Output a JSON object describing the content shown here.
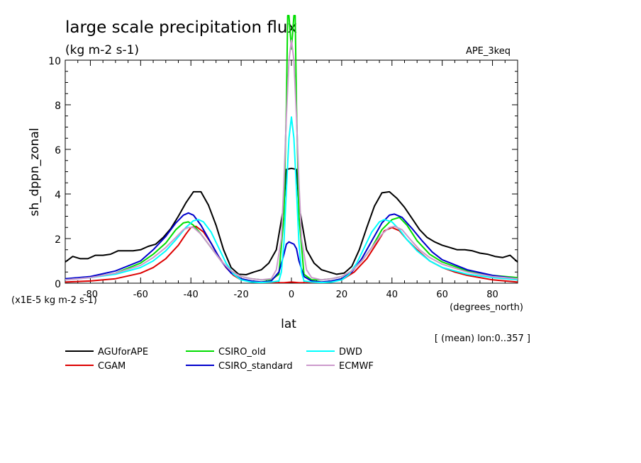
{
  "chart_data": {
    "type": "line",
    "title": "large scale precipitation flux",
    "subtitle": "(kg m-2 s-1)",
    "experiment": "APE_3keq",
    "ylabel": "sh_dppn_zonal",
    "xlabel": "lat",
    "x_unit": "(degrees_north)",
    "y_scale_note": "(x1E-5 kg m-2 s-1)",
    "footnote": "[ (mean) lon:0..357 ]",
    "xlim": [
      -90,
      90
    ],
    "ylim": [
      0,
      10
    ],
    "x_ticks": [
      -80,
      -60,
      -40,
      -20,
      0,
      20,
      40,
      60,
      80
    ],
    "x_tick_labels": [
      "-80",
      "-60",
      "-40",
      "-20",
      "0",
      "20",
      "40",
      "60",
      "80"
    ],
    "y_ticks": [
      0,
      2,
      4,
      6,
      8,
      10
    ],
    "y_tick_labels": [
      "0",
      "2",
      "4",
      "6",
      "8",
      "10"
    ],
    "legend_position": "bottom",
    "series": [
      {
        "name": "AGUforAPE",
        "color": "#000000",
        "points": [
          [
            -90,
            0.95
          ],
          [
            -87,
            1.2
          ],
          [
            -84,
            1.1
          ],
          [
            -81,
            1.1
          ],
          [
            -78,
            1.25
          ],
          [
            -75,
            1.25
          ],
          [
            -72,
            1.3
          ],
          [
            -69,
            1.45
          ],
          [
            -66,
            1.45
          ],
          [
            -63,
            1.45
          ],
          [
            -60,
            1.5
          ],
          [
            -57,
            1.65
          ],
          [
            -54,
            1.75
          ],
          [
            -51,
            2.05
          ],
          [
            -48,
            2.45
          ],
          [
            -45,
            3.0
          ],
          [
            -42,
            3.6
          ],
          [
            -39,
            4.1
          ],
          [
            -36,
            4.1
          ],
          [
            -33,
            3.5
          ],
          [
            -30,
            2.6
          ],
          [
            -27,
            1.5
          ],
          [
            -24,
            0.7
          ],
          [
            -21,
            0.4
          ],
          [
            -18,
            0.38
          ],
          [
            -15,
            0.5
          ],
          [
            -12,
            0.6
          ],
          [
            -9,
            0.9
          ],
          [
            -6,
            1.5
          ],
          [
            -3,
            3.5
          ],
          [
            -2,
            5.1
          ],
          [
            0,
            5.15
          ],
          [
            2,
            5.1
          ],
          [
            3,
            3.5
          ],
          [
            6,
            1.5
          ],
          [
            9,
            0.9
          ],
          [
            12,
            0.6
          ],
          [
            15,
            0.5
          ],
          [
            18,
            0.4
          ],
          [
            21,
            0.45
          ],
          [
            24,
            0.75
          ],
          [
            27,
            1.5
          ],
          [
            30,
            2.5
          ],
          [
            33,
            3.45
          ],
          [
            36,
            4.05
          ],
          [
            39,
            4.1
          ],
          [
            42,
            3.8
          ],
          [
            45,
            3.4
          ],
          [
            48,
            2.9
          ],
          [
            51,
            2.4
          ],
          [
            54,
            2.05
          ],
          [
            57,
            1.85
          ],
          [
            60,
            1.7
          ],
          [
            63,
            1.6
          ],
          [
            66,
            1.5
          ],
          [
            69,
            1.5
          ],
          [
            72,
            1.45
          ],
          [
            75,
            1.35
          ],
          [
            78,
            1.3
          ],
          [
            81,
            1.2
          ],
          [
            84,
            1.15
          ],
          [
            87,
            1.25
          ],
          [
            90,
            0.95
          ]
        ]
      },
      {
        "name": "CGAM",
        "color": "#dd0000",
        "points": [
          [
            -90,
            0.05
          ],
          [
            -80,
            0.1
          ],
          [
            -70,
            0.2
          ],
          [
            -60,
            0.45
          ],
          [
            -55,
            0.7
          ],
          [
            -50,
            1.1
          ],
          [
            -45,
            1.7
          ],
          [
            -42,
            2.2
          ],
          [
            -40,
            2.5
          ],
          [
            -38,
            2.55
          ],
          [
            -35,
            2.3
          ],
          [
            -32,
            1.8
          ],
          [
            -29,
            1.2
          ],
          [
            -26,
            0.7
          ],
          [
            -23,
            0.35
          ],
          [
            -20,
            0.15
          ],
          [
            -15,
            0.05
          ],
          [
            -10,
            0.02
          ],
          [
            -3,
            0.02
          ],
          [
            0,
            0.05
          ],
          [
            3,
            0.02
          ],
          [
            10,
            0.02
          ],
          [
            15,
            0.05
          ],
          [
            20,
            0.15
          ],
          [
            25,
            0.5
          ],
          [
            30,
            1.1
          ],
          [
            34,
            1.8
          ],
          [
            37,
            2.35
          ],
          [
            40,
            2.5
          ],
          [
            43,
            2.35
          ],
          [
            46,
            1.95
          ],
          [
            50,
            1.5
          ],
          [
            55,
            1.0
          ],
          [
            60,
            0.7
          ],
          [
            65,
            0.5
          ],
          [
            70,
            0.35
          ],
          [
            80,
            0.15
          ],
          [
            90,
            0.05
          ]
        ]
      },
      {
        "name": "CSIRO_old",
        "color": "#00dd00",
        "points": [
          [
            -90,
            0.2
          ],
          [
            -80,
            0.25
          ],
          [
            -70,
            0.45
          ],
          [
            -60,
            0.9
          ],
          [
            -55,
            1.3
          ],
          [
            -50,
            1.8
          ],
          [
            -46,
            2.4
          ],
          [
            -43,
            2.7
          ],
          [
            -41,
            2.75
          ],
          [
            -39,
            2.6
          ],
          [
            -36,
            2.2
          ],
          [
            -32,
            1.6
          ],
          [
            -28,
            1.0
          ],
          [
            -24,
            0.55
          ],
          [
            -20,
            0.3
          ],
          [
            -16,
            0.2
          ],
          [
            -12,
            0.15
          ],
          [
            -8,
            0.15
          ],
          [
            -5,
            0.4
          ],
          [
            -3,
            3.0
          ],
          [
            -2,
            8.0
          ],
          [
            -1.5,
            12.0
          ],
          [
            -1,
            12.0
          ],
          [
            0,
            10.5
          ],
          [
            1,
            12.0
          ],
          [
            1.5,
            12.0
          ],
          [
            2,
            8.0
          ],
          [
            3,
            3.0
          ],
          [
            5,
            0.4
          ],
          [
            8,
            0.15
          ],
          [
            12,
            0.15
          ],
          [
            16,
            0.2
          ],
          [
            20,
            0.3
          ],
          [
            24,
            0.55
          ],
          [
            28,
            1.0
          ],
          [
            32,
            1.6
          ],
          [
            36,
            2.4
          ],
          [
            40,
            2.85
          ],
          [
            43,
            2.95
          ],
          [
            46,
            2.6
          ],
          [
            50,
            1.9
          ],
          [
            55,
            1.3
          ],
          [
            60,
            0.95
          ],
          [
            70,
            0.55
          ],
          [
            80,
            0.35
          ],
          [
            90,
            0.25
          ]
        ]
      },
      {
        "name": "CSIRO_standard",
        "color": "#0000cc",
        "points": [
          [
            -90,
            0.2
          ],
          [
            -80,
            0.3
          ],
          [
            -70,
            0.55
          ],
          [
            -60,
            1.0
          ],
          [
            -55,
            1.5
          ],
          [
            -50,
            2.1
          ],
          [
            -46,
            2.7
          ],
          [
            -43,
            3.05
          ],
          [
            -41,
            3.15
          ],
          [
            -39,
            3.05
          ],
          [
            -36,
            2.6
          ],
          [
            -32,
            1.8
          ],
          [
            -28,
            1.0
          ],
          [
            -24,
            0.45
          ],
          [
            -20,
            0.2
          ],
          [
            -16,
            0.1
          ],
          [
            -12,
            0.05
          ],
          [
            -8,
            0.1
          ],
          [
            -5,
            0.5
          ],
          [
            -3,
            1.3
          ],
          [
            -2,
            1.75
          ],
          [
            -1,
            1.85
          ],
          [
            0,
            1.8
          ],
          [
            1,
            1.75
          ],
          [
            2,
            1.55
          ],
          [
            3,
            1.0
          ],
          [
            5,
            0.3
          ],
          [
            8,
            0.1
          ],
          [
            12,
            0.05
          ],
          [
            16,
            0.1
          ],
          [
            20,
            0.2
          ],
          [
            24,
            0.5
          ],
          [
            28,
            1.1
          ],
          [
            32,
            1.9
          ],
          [
            36,
            2.7
          ],
          [
            39,
            3.05
          ],
          [
            41,
            3.1
          ],
          [
            44,
            2.95
          ],
          [
            48,
            2.45
          ],
          [
            52,
            1.9
          ],
          [
            56,
            1.4
          ],
          [
            60,
            1.05
          ],
          [
            70,
            0.6
          ],
          [
            80,
            0.35
          ],
          [
            90,
            0.2
          ]
        ]
      },
      {
        "name": "DWD",
        "color": "#00ffff",
        "points": [
          [
            -90,
            0.15
          ],
          [
            -80,
            0.25
          ],
          [
            -70,
            0.4
          ],
          [
            -60,
            0.7
          ],
          [
            -55,
            1.0
          ],
          [
            -50,
            1.45
          ],
          [
            -46,
            1.95
          ],
          [
            -42,
            2.5
          ],
          [
            -39,
            2.8
          ],
          [
            -37,
            2.85
          ],
          [
            -35,
            2.75
          ],
          [
            -32,
            2.3
          ],
          [
            -29,
            1.6
          ],
          [
            -26,
            0.9
          ],
          [
            -23,
            0.4
          ],
          [
            -20,
            0.15
          ],
          [
            -16,
            0.05
          ],
          [
            -12,
            0.03
          ],
          [
            -8,
            0.05
          ],
          [
            -5,
            0.1
          ],
          [
            -4,
            0.5
          ],
          [
            -3,
            1.8
          ],
          [
            -2,
            4.2
          ],
          [
            -1,
            6.5
          ],
          [
            0,
            7.45
          ],
          [
            1,
            6.5
          ],
          [
            2,
            4.2
          ],
          [
            3,
            1.8
          ],
          [
            4,
            0.5
          ],
          [
            5,
            0.1
          ],
          [
            8,
            0.05
          ],
          [
            12,
            0.03
          ],
          [
            16,
            0.05
          ],
          [
            20,
            0.15
          ],
          [
            23,
            0.4
          ],
          [
            26,
            0.9
          ],
          [
            29,
            1.6
          ],
          [
            32,
            2.3
          ],
          [
            35,
            2.75
          ],
          [
            37,
            2.85
          ],
          [
            40,
            2.75
          ],
          [
            43,
            2.4
          ],
          [
            46,
            1.95
          ],
          [
            50,
            1.45
          ],
          [
            55,
            1.0
          ],
          [
            60,
            0.7
          ],
          [
            70,
            0.4
          ],
          [
            80,
            0.25
          ],
          [
            90,
            0.15
          ]
        ]
      },
      {
        "name": "ECMWF",
        "color": "#cc99cc",
        "points": [
          [
            -90,
            0.15
          ],
          [
            -80,
            0.25
          ],
          [
            -70,
            0.45
          ],
          [
            -60,
            0.8
          ],
          [
            -55,
            1.15
          ],
          [
            -50,
            1.6
          ],
          [
            -46,
            2.05
          ],
          [
            -43,
            2.4
          ],
          [
            -41,
            2.5
          ],
          [
            -39,
            2.5
          ],
          [
            -36,
            2.2
          ],
          [
            -32,
            1.6
          ],
          [
            -28,
            1.0
          ],
          [
            -24,
            0.55
          ],
          [
            -20,
            0.3
          ],
          [
            -16,
            0.2
          ],
          [
            -12,
            0.15
          ],
          [
            -8,
            0.2
          ],
          [
            -6,
            0.6
          ],
          [
            -4,
            2.0
          ],
          [
            -3,
            4.5
          ],
          [
            -2,
            7.5
          ],
          [
            -1,
            10.0
          ],
          [
            0,
            10.9
          ],
          [
            1,
            10.0
          ],
          [
            2,
            7.5
          ],
          [
            3,
            4.5
          ],
          [
            4,
            2.0
          ],
          [
            6,
            0.6
          ],
          [
            8,
            0.25
          ],
          [
            12,
            0.15
          ],
          [
            16,
            0.2
          ],
          [
            20,
            0.3
          ],
          [
            24,
            0.55
          ],
          [
            28,
            1.0
          ],
          [
            32,
            1.6
          ],
          [
            36,
            2.2
          ],
          [
            39,
            2.5
          ],
          [
            41,
            2.55
          ],
          [
            44,
            2.4
          ],
          [
            47,
            2.0
          ],
          [
            51,
            1.5
          ],
          [
            55,
            1.15
          ],
          [
            60,
            0.85
          ],
          [
            70,
            0.5
          ],
          [
            80,
            0.3
          ],
          [
            90,
            0.2
          ]
        ]
      }
    ]
  }
}
